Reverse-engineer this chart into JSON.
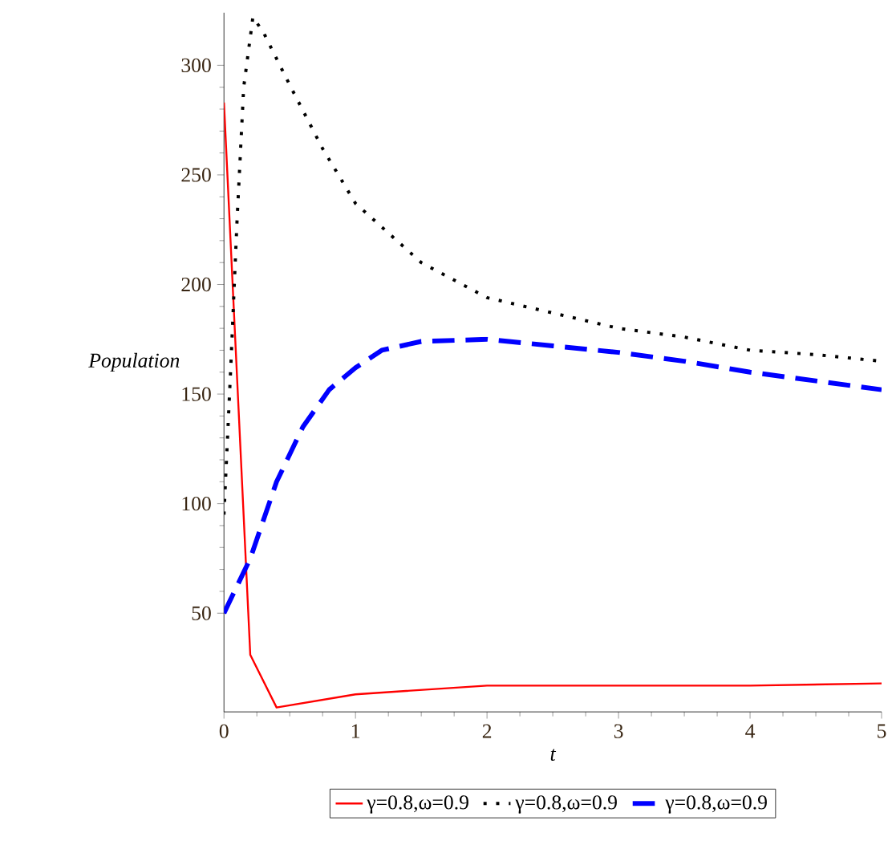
{
  "chart_data": {
    "type": "line",
    "xlabel": "t",
    "ylabel": "Population",
    "xlim": [
      0,
      5
    ],
    "ylim": [
      5,
      324
    ],
    "xticks": [
      0,
      1,
      2,
      3,
      4,
      5
    ],
    "yticks": [
      50,
      100,
      150,
      200,
      250,
      300
    ],
    "legend": "bottom",
    "grid": false,
    "marker": "none",
    "series": [
      {
        "name": "γ=0.8,ω=0.9",
        "color": "#ff0000",
        "line_style": "solid",
        "x": [
          0,
          0.2,
          0.4,
          1,
          2,
          3,
          4,
          5
        ],
        "values": [
          283,
          31,
          7,
          13,
          17,
          17,
          17,
          18
        ]
      },
      {
        "name": "γ=0.8,ω=0.9",
        "color": "#000000",
        "line_style": "dotted",
        "x": [
          0,
          0.05,
          0.1,
          0.15,
          0.22,
          0.3,
          0.5,
          0.75,
          1,
          1.5,
          2,
          2.5,
          3,
          3.5,
          4,
          4.5,
          5
        ],
        "values": [
          95,
          160,
          230,
          290,
          322,
          315,
          291,
          262,
          237,
          210,
          194,
          187,
          180,
          176,
          170,
          168,
          165
        ]
      },
      {
        "name": "γ=0.8,ω=0.9",
        "color": "#0000ff",
        "line_style": "dashed",
        "x": [
          0,
          0.2,
          0.4,
          0.6,
          0.8,
          1,
          1.2,
          1.5,
          2,
          2.5,
          3,
          3.5,
          4,
          4.5,
          5
        ],
        "values": [
          50,
          75,
          110,
          135,
          152,
          162,
          170,
          174,
          175,
          172,
          169,
          165,
          160,
          156,
          152
        ]
      }
    ]
  }
}
